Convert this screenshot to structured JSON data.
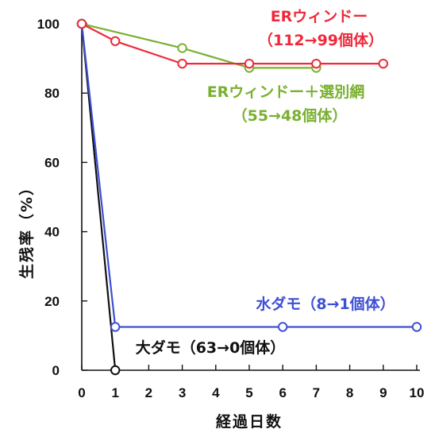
{
  "chart_data": {
    "type": "line",
    "xlabel": "経過日数",
    "ylabel": "生残率（%）",
    "xlim": [
      0,
      10
    ],
    "ylim": [
      0,
      100
    ],
    "xticks": [
      "0",
      "1",
      "2",
      "3",
      "4",
      "5",
      "6",
      "7",
      "8",
      "9",
      "10"
    ],
    "yticks": [
      "0",
      "20",
      "40",
      "60",
      "80",
      "100"
    ],
    "grid": false,
    "series": [
      {
        "id": "er",
        "color": "#ee2a3a",
        "label_lines": [
          "ERウィンドー",
          "（112→99個体）"
        ],
        "points": [
          [
            0,
            100
          ],
          [
            1,
            95
          ],
          [
            3,
            88.5
          ],
          [
            5,
            88.5
          ],
          [
            7,
            88.5
          ],
          [
            9,
            88.5
          ]
        ]
      },
      {
        "id": "er_net",
        "color": "#7ab030",
        "label_lines": [
          "ERウィンドー＋選別網",
          "（55→48個体）"
        ],
        "points": [
          [
            0,
            100
          ],
          [
            3,
            93
          ],
          [
            5,
            87.3
          ],
          [
            7,
            87.3
          ]
        ]
      },
      {
        "id": "mizudamo",
        "color": "#3d50d6",
        "label_lines": [
          "水ダモ（8→1個体）"
        ],
        "points": [
          [
            0,
            100
          ],
          [
            1,
            12.5
          ],
          [
            6,
            12.5
          ],
          [
            10,
            12.5
          ]
        ]
      },
      {
        "id": "oodamo",
        "color": "#111111",
        "label_lines": [
          "大ダモ（63→0個体）"
        ],
        "points": [
          [
            0,
            100
          ],
          [
            1,
            0
          ]
        ]
      }
    ]
  }
}
